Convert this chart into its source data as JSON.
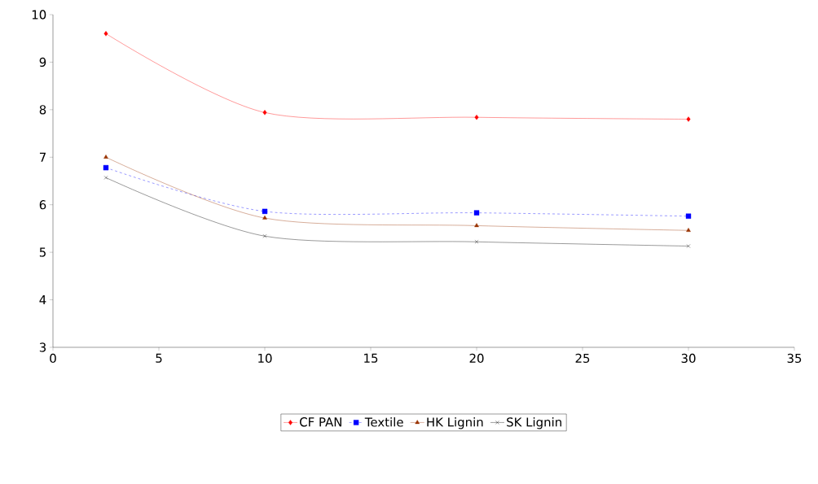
{
  "chart_data": {
    "type": "line",
    "x": [
      2.5,
      10,
      20,
      30
    ],
    "xlim": [
      0,
      35
    ],
    "ylim": [
      3,
      10
    ],
    "xticks": [
      0,
      5,
      10,
      15,
      20,
      25,
      30,
      35
    ],
    "yticks": [
      3,
      4,
      5,
      6,
      7,
      8,
      9,
      10
    ],
    "grid": false,
    "legend": "bottom",
    "series": [
      {
        "name": "CF PAN",
        "color": "#ff0000",
        "values": [
          9.6,
          7.94,
          7.84,
          7.8
        ],
        "marker": "diamond",
        "line_style": "solid"
      },
      {
        "name": "Textile",
        "color": "#0000ff",
        "values": [
          6.78,
          5.86,
          5.83,
          5.76
        ],
        "marker": "square",
        "line_style": "dashed"
      },
      {
        "name": "HK Lignin",
        "color": "#993300",
        "values": [
          7.0,
          5.72,
          5.56,
          5.46
        ],
        "marker": "triangle",
        "line_style": "solid"
      },
      {
        "name": "SK Lignin",
        "color": "#000000",
        "values": [
          6.57,
          5.34,
          5.22,
          5.13
        ],
        "marker": "cross",
        "line_style": "solid"
      }
    ]
  }
}
